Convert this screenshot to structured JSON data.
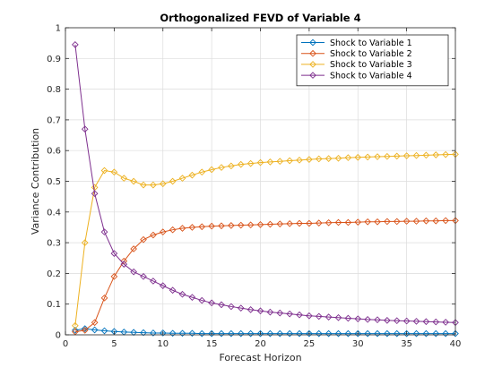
{
  "chart_data": {
    "type": "line",
    "title": "Orthogonalized FEVD of Variable 4",
    "xlabel": "Forecast Horizon",
    "ylabel": "Variance Contribution",
    "xlim": [
      0,
      40
    ],
    "ylim": [
      0,
      1
    ],
    "xticks": [
      0,
      5,
      10,
      15,
      20,
      25,
      30,
      35,
      40
    ],
    "yticks": [
      0,
      0.1,
      0.2,
      0.3,
      0.4,
      0.5,
      0.6,
      0.7,
      0.8,
      0.9,
      1
    ],
    "grid": true,
    "legend_position": "top-right",
    "marker": "diamond",
    "x": [
      1,
      2,
      3,
      4,
      5,
      6,
      7,
      8,
      9,
      10,
      11,
      12,
      13,
      14,
      15,
      16,
      17,
      18,
      19,
      20,
      21,
      22,
      23,
      24,
      25,
      26,
      27,
      28,
      29,
      30,
      31,
      32,
      33,
      34,
      35,
      36,
      37,
      38,
      39,
      40
    ],
    "series": [
      {
        "name": "Shock to Variable 1",
        "color": "#0072BD",
        "values": [
          0.015,
          0.02,
          0.016,
          0.013,
          0.011,
          0.009,
          0.008,
          0.007,
          0.006,
          0.006,
          0.005,
          0.005,
          0.005,
          0.004,
          0.004,
          0.004,
          0.004,
          0.004,
          0.004,
          0.004,
          0.004,
          0.004,
          0.004,
          0.004,
          0.004,
          0.004,
          0.004,
          0.004,
          0.004,
          0.004,
          0.004,
          0.004,
          0.004,
          0.004,
          0.004,
          0.004,
          0.004,
          0.004,
          0.004,
          0.004
        ]
      },
      {
        "name": "Shock to Variable 2",
        "color": "#D95319",
        "values": [
          0.01,
          0.015,
          0.04,
          0.12,
          0.19,
          0.24,
          0.28,
          0.31,
          0.325,
          0.335,
          0.342,
          0.347,
          0.35,
          0.352,
          0.354,
          0.355,
          0.356,
          0.357,
          0.358,
          0.359,
          0.36,
          0.361,
          0.362,
          0.363,
          0.363,
          0.364,
          0.365,
          0.366,
          0.366,
          0.367,
          0.368,
          0.368,
          0.369,
          0.369,
          0.37,
          0.37,
          0.371,
          0.371,
          0.372,
          0.372
        ]
      },
      {
        "name": "Shock to Variable 3",
        "color": "#EDB120",
        "values": [
          0.03,
          0.3,
          0.48,
          0.535,
          0.53,
          0.51,
          0.5,
          0.488,
          0.488,
          0.492,
          0.5,
          0.51,
          0.52,
          0.53,
          0.538,
          0.545,
          0.55,
          0.555,
          0.558,
          0.561,
          0.563,
          0.565,
          0.567,
          0.569,
          0.571,
          0.573,
          0.574,
          0.575,
          0.577,
          0.578,
          0.579,
          0.58,
          0.581,
          0.582,
          0.583,
          0.584,
          0.585,
          0.586,
          0.587,
          0.588
        ]
      },
      {
        "name": "Shock to Variable 4",
        "color": "#7E2F8E",
        "values": [
          0.945,
          0.67,
          0.46,
          0.335,
          0.265,
          0.23,
          0.205,
          0.19,
          0.175,
          0.16,
          0.145,
          0.132,
          0.122,
          0.112,
          0.104,
          0.098,
          0.092,
          0.087,
          0.082,
          0.078,
          0.074,
          0.071,
          0.068,
          0.065,
          0.062,
          0.06,
          0.058,
          0.056,
          0.054,
          0.052,
          0.05,
          0.049,
          0.047,
          0.046,
          0.045,
          0.044,
          0.043,
          0.042,
          0.041,
          0.04
        ]
      }
    ]
  }
}
